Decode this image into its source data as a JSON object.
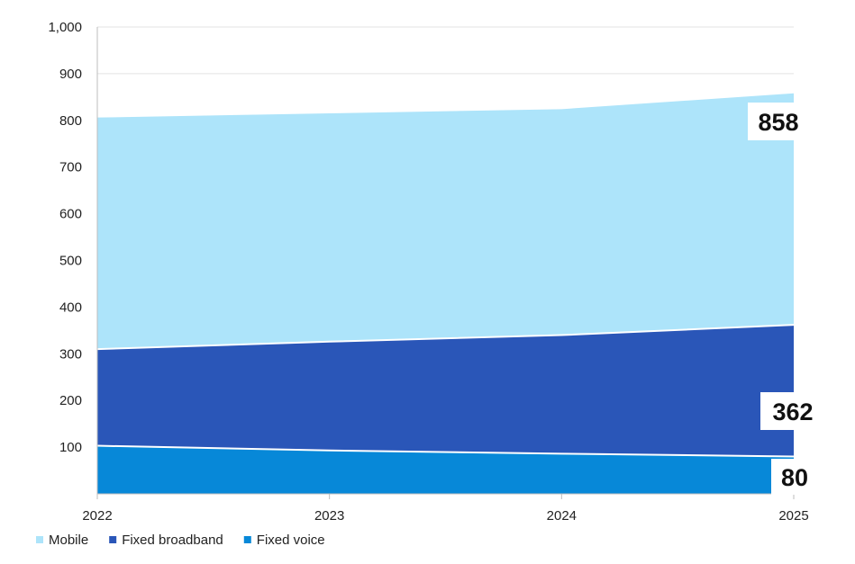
{
  "chart_data": {
    "type": "area",
    "stacked": true,
    "title": "",
    "xlabel": "",
    "ylabel": "",
    "x": [
      "2022",
      "2023",
      "2024",
      "2025"
    ],
    "ylim": [
      0,
      1000
    ],
    "y_ticks": [
      "100",
      "200",
      "300",
      "400",
      "500",
      "600",
      "700",
      "800",
      "900",
      "1,000"
    ],
    "grid": true,
    "legend_position": "bottom-left",
    "series": [
      {
        "name": "Mobile",
        "color": "#ade4fa",
        "values": [
          496,
          489,
          484,
          496
        ]
      },
      {
        "name": "Fixed broadband",
        "color": "#2a56b8",
        "values": [
          207,
          233,
          254,
          282
        ]
      },
      {
        "name": "Fixed voice",
        "color": "#0788d8",
        "values": [
          103,
          93,
          86,
          80
        ]
      }
    ],
    "end_labels": [
      {
        "series": "Mobile",
        "text": "858"
      },
      {
        "series": "Fixed broadband",
        "text": "362"
      },
      {
        "series": "Fixed voice",
        "text": "80"
      }
    ]
  }
}
